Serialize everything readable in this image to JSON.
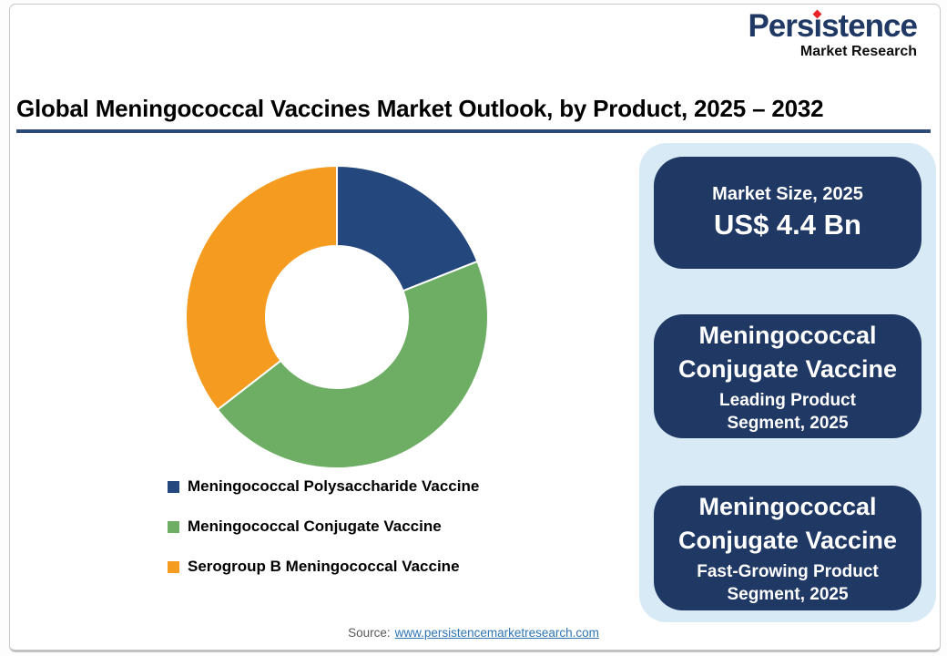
{
  "logo": {
    "brand_pre": "Pers",
    "brand_i": "ı",
    "brand_post": "stence",
    "tagline": "Market Research",
    "brand_color": "#1F3864",
    "accent_color": "#E8232A"
  },
  "title": "Global Meningococcal Vaccines Market Outlook, by Product, 2025 – 2032",
  "chart_data": {
    "type": "pie",
    "subtype": "donut",
    "categories": [
      "Meningococcal Polysaccharide Vaccine",
      "Meningococcal Conjugate Vaccine",
      "Serogroup B Meningococcal Vaccine"
    ],
    "values": [
      19,
      45.5,
      35.5
    ],
    "values_unit": "% share (estimated from segment angles; no data labels shown)",
    "colors": [
      "#24477E",
      "#6DAE64",
      "#F59B20"
    ],
    "start_angle_deg": 0,
    "direction": "clockwise",
    "donut_hole_ratio": 0.47,
    "legend_position": "bottom-left"
  },
  "panel": {
    "background": "#D9EAF7",
    "box_color": "#1F3864",
    "text_color": "#FFFFFF",
    "boxes": [
      {
        "heading": "Market Size, 2025",
        "value": "US$ 4.4 Bn"
      },
      {
        "heading_lines": [
          "Meningococcal",
          "Conjugate Vaccine"
        ],
        "sub_lines": [
          "Leading Product",
          "Segment, 2025"
        ]
      },
      {
        "heading_lines": [
          "Meningococcal",
          "Conjugate Vaccine"
        ],
        "sub_lines": [
          "Fast-Growing Product",
          "Segment, 2025"
        ]
      }
    ]
  },
  "source": {
    "label": "Source:",
    "link_text": "www.persistencemarketresearch.com",
    "link_color": "#2E75B6"
  }
}
